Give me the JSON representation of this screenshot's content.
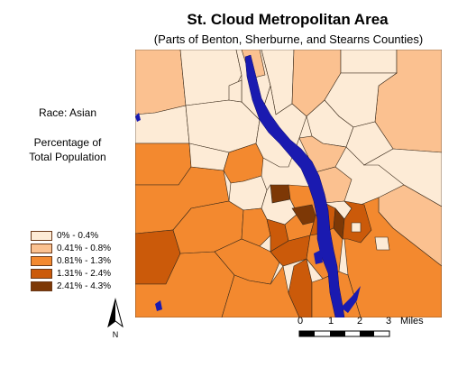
{
  "map": {
    "title": "St. Cloud Metropolitan Area",
    "subtitle": "(Parts of Benton, Sherburne, and Stearns Counties)",
    "variable_label": "Race: Asian",
    "measure_label_line1": "Percentage of",
    "measure_label_line2": "Total Population",
    "north_label": "N",
    "scale": {
      "ticks": [
        "0",
        "1",
        "2",
        "3"
      ],
      "unit": "Miles"
    },
    "river_color": "#1a1ab0",
    "legend": [
      {
        "label": "0% - 0.4%",
        "color": "#fdebd6"
      },
      {
        "label": "0.41% - 0.8%",
        "color": "#fbc190"
      },
      {
        "label": "0.81% - 1.3%",
        "color": "#f3892f"
      },
      {
        "label": "1.31% - 2.4%",
        "color": "#cb5a0a"
      },
      {
        "label": "2.41% - 4.3%",
        "color": "#7d3806"
      }
    ]
  }
}
